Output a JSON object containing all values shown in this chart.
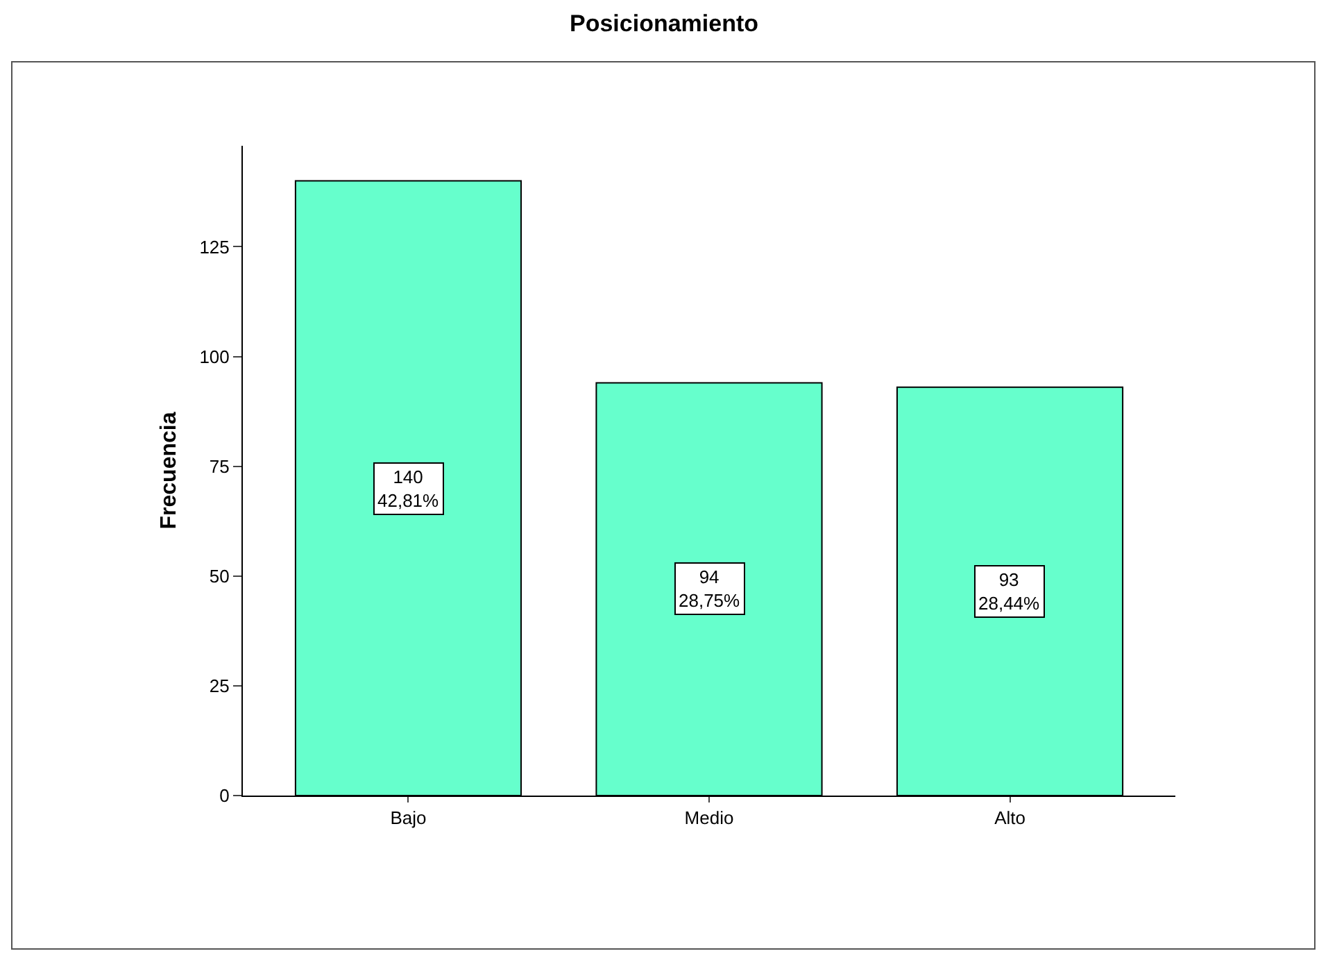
{
  "chart_data": {
    "type": "bar",
    "title": "Posicionamiento",
    "ylabel": "Frecuencia",
    "categories": [
      "Bajo",
      "Medio",
      "Alto"
    ],
    "values": [
      140,
      94,
      93
    ],
    "color": "#66ffcc",
    "value_labels": [
      "140\n42,81%",
      "94\n28,75%",
      "93\n28,44%"
    ],
    "ylim": [
      0,
      148
    ],
    "yticks": [
      0,
      25,
      50,
      75,
      100,
      125
    ],
    "grid": false
  }
}
